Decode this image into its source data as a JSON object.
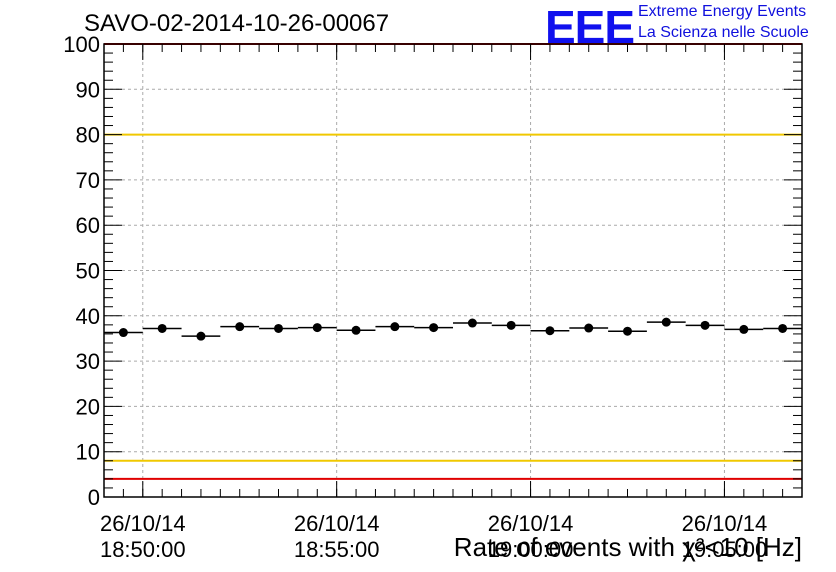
{
  "header": {
    "run_title": "SAVO-02-2014-10-26-00067",
    "logo_text": "EEE",
    "tagline_1": "Extreme Energy Events",
    "tagline_2": "La Scienza nelle Scuole"
  },
  "colors": {
    "logo": "#1010ee",
    "limit_high": "#e00000",
    "limit_warn": "#f0c800",
    "marker": "#000000"
  },
  "chart_data": {
    "type": "scatter",
    "title": "SAVO-02-2014-10-26-00067",
    "xlabel": "Rate of events with χ²<10 [Hz]",
    "ylabel": "",
    "xlim_minutes": [
      0,
      18.0
    ],
    "ylim": [
      0,
      100
    ],
    "yticks": [
      "0",
      "10",
      "20",
      "30",
      "40",
      "50",
      "60",
      "70",
      "80",
      "90",
      "100"
    ],
    "xticks": [
      {
        "t": 1.0,
        "date": "26/10/14",
        "time": "18:50:00"
      },
      {
        "t": 6.0,
        "date": "26/10/14",
        "time": "18:55:00"
      },
      {
        "t": 11.0,
        "date": "26/10/14",
        "time": "19:00:00"
      },
      {
        "t": 16.0,
        "date": "26/10/14",
        "time": "19:05:00"
      }
    ],
    "bin_width_minutes": 1.0,
    "x_minutes": [
      0.5,
      1.5,
      2.5,
      3.5,
      4.5,
      5.5,
      6.5,
      7.5,
      8.5,
      9.5,
      10.5,
      11.5,
      12.5,
      13.5,
      14.5,
      15.5,
      16.5,
      17.5
    ],
    "values": [
      36.3,
      37.2,
      35.5,
      37.6,
      37.2,
      37.4,
      36.8,
      37.6,
      37.4,
      38.4,
      37.9,
      36.7,
      37.3,
      36.6,
      38.6,
      37.9,
      37.0,
      37.2
    ],
    "reference_lines": [
      {
        "name": "upper-red-limit",
        "y": 100,
        "color": "#e00000"
      },
      {
        "name": "upper-yellow-limit",
        "y": 80,
        "color": "#f0c800"
      },
      {
        "name": "lower-yellow-limit",
        "y": 8,
        "color": "#f0c800"
      },
      {
        "name": "lower-red-limit",
        "y": 4,
        "color": "#e00000"
      }
    ],
    "grid": true
  }
}
